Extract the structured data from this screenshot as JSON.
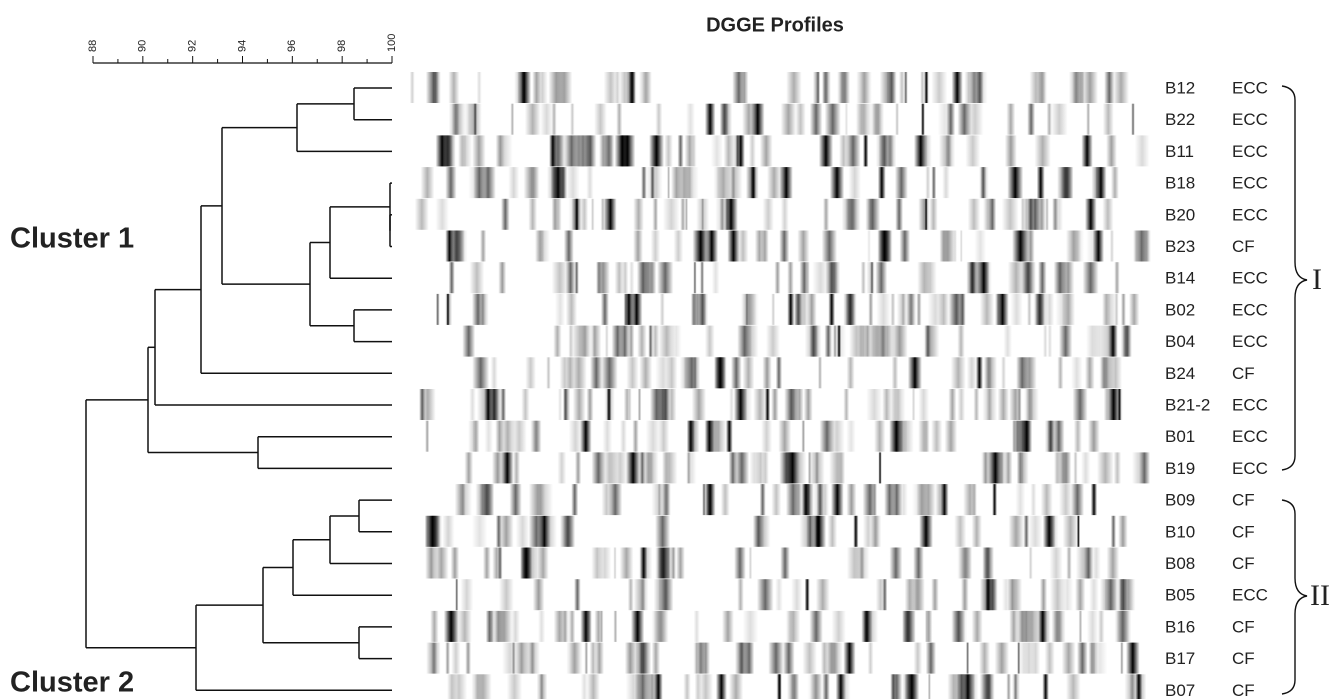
{
  "title": "DGGE Profiles",
  "scale": {
    "ticks": [
      "88",
      "90",
      "92",
      "94",
      "96",
      "98",
      "100"
    ]
  },
  "clusters": [
    "Cluster 1",
    "Cluster 2"
  ],
  "samples": [
    {
      "id": "B12",
      "group": "ECC"
    },
    {
      "id": "B22",
      "group": "ECC"
    },
    {
      "id": "B11",
      "group": "ECC"
    },
    {
      "id": "B18",
      "group": "ECC"
    },
    {
      "id": "B20",
      "group": "ECC"
    },
    {
      "id": "B23",
      "group": "CF"
    },
    {
      "id": "B14",
      "group": "ECC"
    },
    {
      "id": "B02",
      "group": "ECC"
    },
    {
      "id": "B04",
      "group": "ECC"
    },
    {
      "id": "B24",
      "group": "CF"
    },
    {
      "id": "B21-2",
      "group": "ECC"
    },
    {
      "id": "B01",
      "group": "ECC"
    },
    {
      "id": "B19",
      "group": "ECC"
    },
    {
      "id": "B09",
      "group": "CF"
    },
    {
      "id": "B10",
      "group": "CF"
    },
    {
      "id": "B08",
      "group": "CF"
    },
    {
      "id": "B05",
      "group": "ECC"
    },
    {
      "id": "B16",
      "group": "CF"
    },
    {
      "id": "B17",
      "group": "CF"
    },
    {
      "id": "B07",
      "group": "CF"
    }
  ],
  "brackets": [
    "I",
    "II"
  ]
}
